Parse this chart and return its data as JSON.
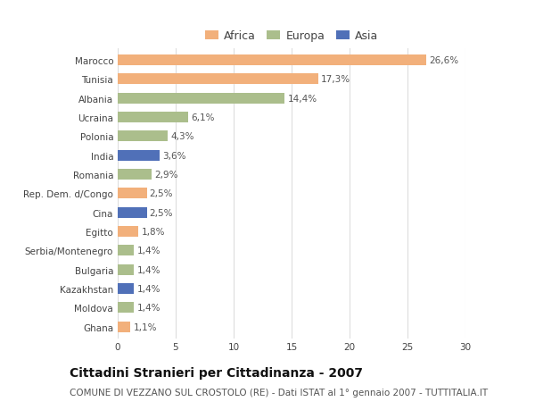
{
  "countries": [
    "Marocco",
    "Tunisia",
    "Albania",
    "Ucraina",
    "Polonia",
    "India",
    "Romania",
    "Rep. Dem. d/Congo",
    "Cina",
    "Egitto",
    "Serbia/Montenegro",
    "Bulgaria",
    "Kazakhstan",
    "Moldova",
    "Ghana"
  ],
  "values": [
    26.6,
    17.3,
    14.4,
    6.1,
    4.3,
    3.6,
    2.9,
    2.5,
    2.5,
    1.8,
    1.4,
    1.4,
    1.4,
    1.4,
    1.1
  ],
  "labels": [
    "26,6%",
    "17,3%",
    "14,4%",
    "6,1%",
    "4,3%",
    "3,6%",
    "2,9%",
    "2,5%",
    "2,5%",
    "1,8%",
    "1,4%",
    "1,4%",
    "1,4%",
    "1,4%",
    "1,1%"
  ],
  "continents": [
    "Africa",
    "Africa",
    "Europa",
    "Europa",
    "Europa",
    "Asia",
    "Europa",
    "Africa",
    "Asia",
    "Africa",
    "Europa",
    "Europa",
    "Asia",
    "Europa",
    "Africa"
  ],
  "colors": {
    "Africa": "#F2B07B",
    "Europa": "#ABBE8C",
    "Asia": "#5070B8"
  },
  "title": "Cittadini Stranieri per Cittadinanza - 2007",
  "subtitle": "COMUNE DI VEZZANO SUL CROSTOLO (RE) - Dati ISTAT al 1° gennaio 2007 - TUTTITALIA.IT",
  "xlim": [
    0,
    30
  ],
  "xticks": [
    0,
    5,
    10,
    15,
    20,
    25,
    30
  ],
  "background_color": "#ffffff",
  "plot_background": "#ffffff",
  "grid_color": "#dddddd",
  "label_fontsize": 7.5,
  "tick_fontsize": 7.5,
  "title_fontsize": 10,
  "subtitle_fontsize": 7.5,
  "bar_height": 0.55
}
